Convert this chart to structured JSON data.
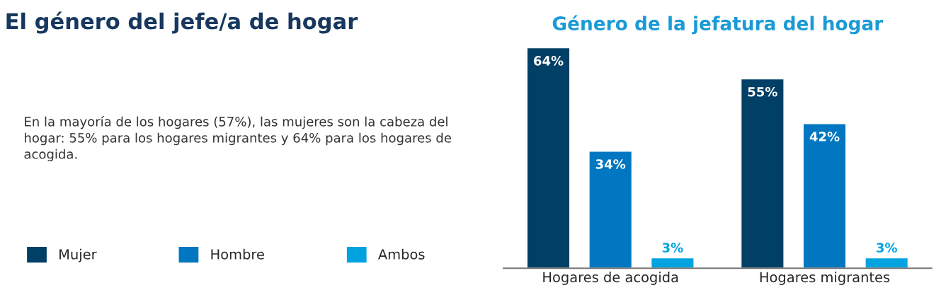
{
  "chart_data": {
    "type": "bar",
    "title": "Género de la jefatura del hogar",
    "categories": [
      "Hogares de acogida",
      "Hogares migrantes"
    ],
    "series": [
      {
        "name": "Mujer",
        "color": "#003f66",
        "values": [
          64,
          55
        ],
        "value_labels": [
          "64%",
          "55%"
        ]
      },
      {
        "name": "Hombre",
        "color": "#0077c0",
        "values": [
          34,
          42
        ],
        "value_labels": [
          "34%",
          "42%"
        ]
      },
      {
        "name": "Ambos",
        "color": "#00a3e0",
        "values": [
          3,
          3
        ],
        "value_labels": [
          "3%",
          "3%"
        ]
      }
    ],
    "annotations": [
      "El género del jefe/a de hogar",
      "En la mayoría de los hogares (57%), las mujeres son la cabeza del hogar: 55% para los hogares migrantes y 64% para los hogares de acogida."
    ],
    "legend": "bottom left",
    "grid": false,
    "tick_labels": "x"
  }
}
